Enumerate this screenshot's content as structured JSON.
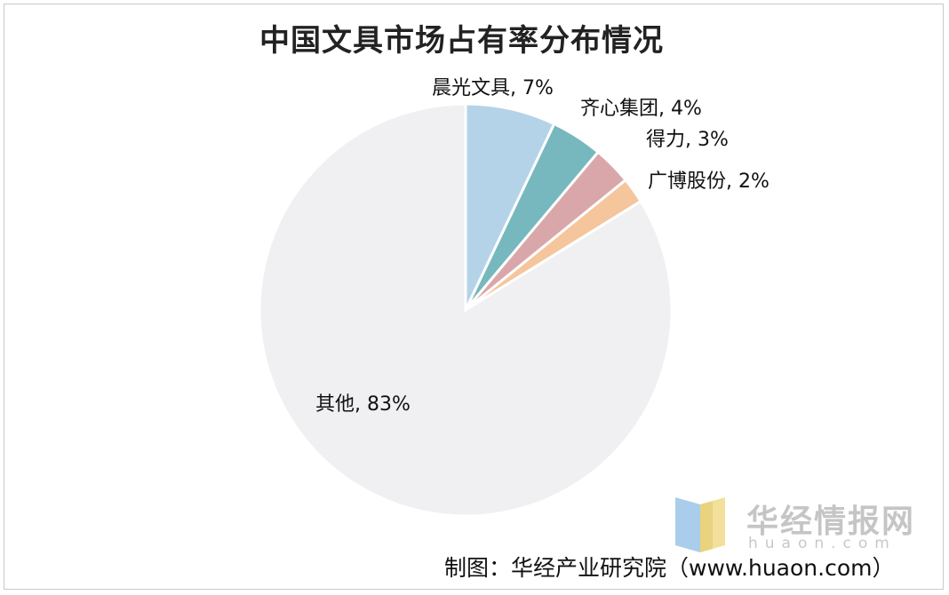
{
  "chart_data": {
    "type": "pie",
    "title": "中国文具市场占有率分布情况",
    "slices": [
      {
        "label": "晨光文具, 7%",
        "value": 7,
        "color": "#b5d3e8"
      },
      {
        "label": "齐心集团, 4%",
        "value": 4,
        "color": "#76b8bd"
      },
      {
        "label": "得力, 3%",
        "value": 3,
        "color": "#d9a7aa"
      },
      {
        "label": "广博股份, 2%",
        "value": 2,
        "color": "#f5c59c"
      },
      {
        "label": "其他, 83%",
        "value": 83,
        "color": "#f0f0f2"
      }
    ],
    "start_angle": "12 o'clock",
    "direction": "clockwise",
    "legend": "none"
  },
  "watermark": {
    "brand": "华经情报网",
    "domain": "huaon.com"
  },
  "source": "制图：华经产业研究院（www.huaon.com）"
}
